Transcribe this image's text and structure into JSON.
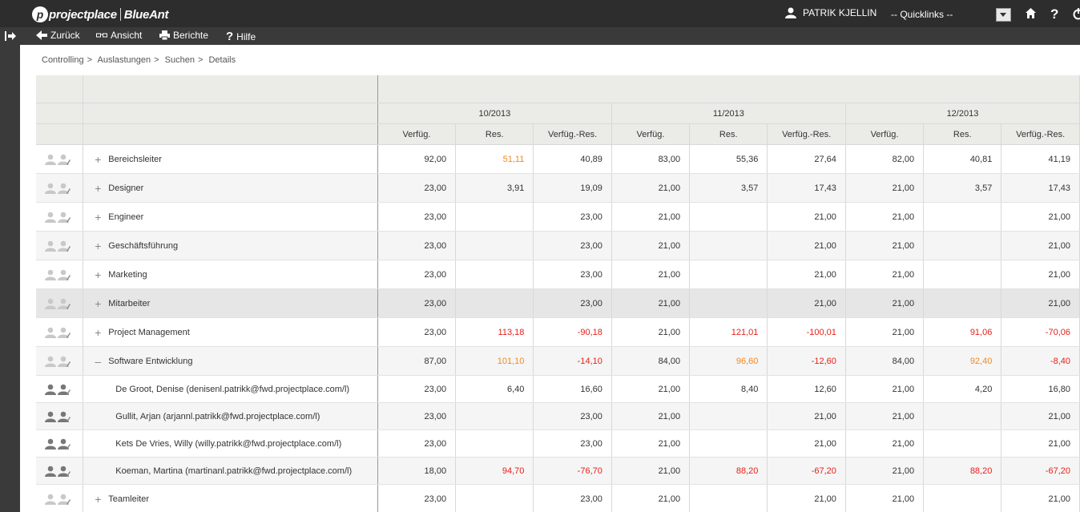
{
  "app": {
    "logo_brand": "projectplace",
    "logo_product": "BlueAnt",
    "user_name": "PATRIK KJELLIN",
    "quicklinks": "-- Quicklinks --"
  },
  "toolbar": {
    "back": "Zurück",
    "view": "Ansicht",
    "reports": "Berichte",
    "help": "Hilfe"
  },
  "breadcrumb": [
    "Controlling",
    "Auslastungen",
    "Suchen",
    "Details"
  ],
  "months": [
    "10/2013",
    "11/2013",
    "12/2013"
  ],
  "subheaders": [
    "Verfüg.",
    "Res.",
    "Verfüg.-Res."
  ],
  "rows": [
    {
      "name": "Bereichsleiter",
      "toggle": "+",
      "level": 0,
      "values": [
        "92,00",
        "51,11",
        "40,89",
        "83,00",
        "55,36",
        "27,64",
        "82,00",
        "40,81",
        "41,19"
      ],
      "colors": [
        "",
        "orange",
        "",
        "",
        "",
        "",
        "",
        "",
        ""
      ]
    },
    {
      "name": "Designer",
      "toggle": "+",
      "level": 0,
      "values": [
        "23,00",
        "3,91",
        "19,09",
        "21,00",
        "3,57",
        "17,43",
        "21,00",
        "3,57",
        "17,43"
      ],
      "colors": [
        "",
        "",
        "",
        "",
        "",
        "",
        "",
        "",
        ""
      ]
    },
    {
      "name": "Engineer",
      "toggle": "+",
      "level": 0,
      "values": [
        "23,00",
        "",
        "23,00",
        "21,00",
        "",
        "21,00",
        "21,00",
        "",
        "21,00"
      ],
      "colors": [
        "",
        "",
        "",
        "",
        "",
        "",
        "",
        "",
        ""
      ]
    },
    {
      "name": "Geschäftsführung",
      "toggle": "+",
      "level": 0,
      "values": [
        "23,00",
        "",
        "23,00",
        "21,00",
        "",
        "21,00",
        "21,00",
        "",
        "21,00"
      ],
      "colors": [
        "",
        "",
        "",
        "",
        "",
        "",
        "",
        "",
        ""
      ]
    },
    {
      "name": "Marketing",
      "toggle": "+",
      "level": 0,
      "values": [
        "23,00",
        "",
        "23,00",
        "21,00",
        "",
        "21,00",
        "21,00",
        "",
        "21,00"
      ],
      "colors": [
        "",
        "",
        "",
        "",
        "",
        "",
        "",
        "",
        ""
      ]
    },
    {
      "name": "Mitarbeiter",
      "toggle": "+",
      "level": 0,
      "values": [
        "23,00",
        "",
        "23,00",
        "21,00",
        "",
        "21,00",
        "21,00",
        "",
        "21,00"
      ],
      "colors": [
        "",
        "",
        "",
        "",
        "",
        "",
        "",
        "",
        ""
      ]
    },
    {
      "name": "Project Management",
      "toggle": "+",
      "level": 0,
      "values": [
        "23,00",
        "113,18",
        "-90,18",
        "21,00",
        "121,01",
        "-100,01",
        "21,00",
        "91,06",
        "-70,06"
      ],
      "colors": [
        "",
        "red",
        "red",
        "",
        "red",
        "red",
        "",
        "red",
        "red"
      ]
    },
    {
      "name": "Software Entwicklung",
      "toggle": "–",
      "level": 0,
      "values": [
        "87,00",
        "101,10",
        "-14,10",
        "84,00",
        "96,60",
        "-12,60",
        "84,00",
        "92,40",
        "-8,40"
      ],
      "colors": [
        "",
        "orange",
        "red",
        "",
        "orange",
        "red",
        "",
        "orange",
        "red"
      ]
    },
    {
      "name": "De Groot, Denise (denisenl.patrikk@fwd.projectplace.com/l)",
      "toggle": "",
      "level": 1,
      "values": [
        "23,00",
        "6,40",
        "16,60",
        "21,00",
        "8,40",
        "12,60",
        "21,00",
        "4,20",
        "16,80"
      ],
      "colors": [
        "",
        "",
        "",
        "",
        "",
        "",
        "",
        "",
        ""
      ]
    },
    {
      "name": "Gullit, Arjan (arjannl.patrikk@fwd.projectplace.com/l)",
      "toggle": "",
      "level": 1,
      "values": [
        "23,00",
        "",
        "23,00",
        "21,00",
        "",
        "21,00",
        "21,00",
        "",
        "21,00"
      ],
      "colors": [
        "",
        "",
        "",
        "",
        "",
        "",
        "",
        "",
        ""
      ]
    },
    {
      "name": "Kets De Vries, Willy (willy.patrikk@fwd.projectplace.com/l)",
      "toggle": "",
      "level": 1,
      "values": [
        "23,00",
        "",
        "23,00",
        "21,00",
        "",
        "21,00",
        "21,00",
        "",
        "21,00"
      ],
      "colors": [
        "",
        "",
        "",
        "",
        "",
        "",
        "",
        "",
        ""
      ]
    },
    {
      "name": "Koeman, Martina (martinanl.patrikk@fwd.projectplace.com/l)",
      "toggle": "",
      "level": 1,
      "values": [
        "18,00",
        "94,70",
        "-76,70",
        "21,00",
        "88,20",
        "-67,20",
        "21,00",
        "88,20",
        "-67,20"
      ],
      "colors": [
        "",
        "red",
        "red",
        "",
        "red",
        "red",
        "",
        "red",
        "red"
      ]
    },
    {
      "name": "Teamleiter",
      "toggle": "+",
      "level": 0,
      "values": [
        "23,00",
        "",
        "23,00",
        "21,00",
        "",
        "21,00",
        "21,00",
        "",
        "21,00"
      ],
      "colors": [
        "",
        "",
        "",
        "",
        "",
        "",
        "",
        "",
        ""
      ]
    }
  ]
}
